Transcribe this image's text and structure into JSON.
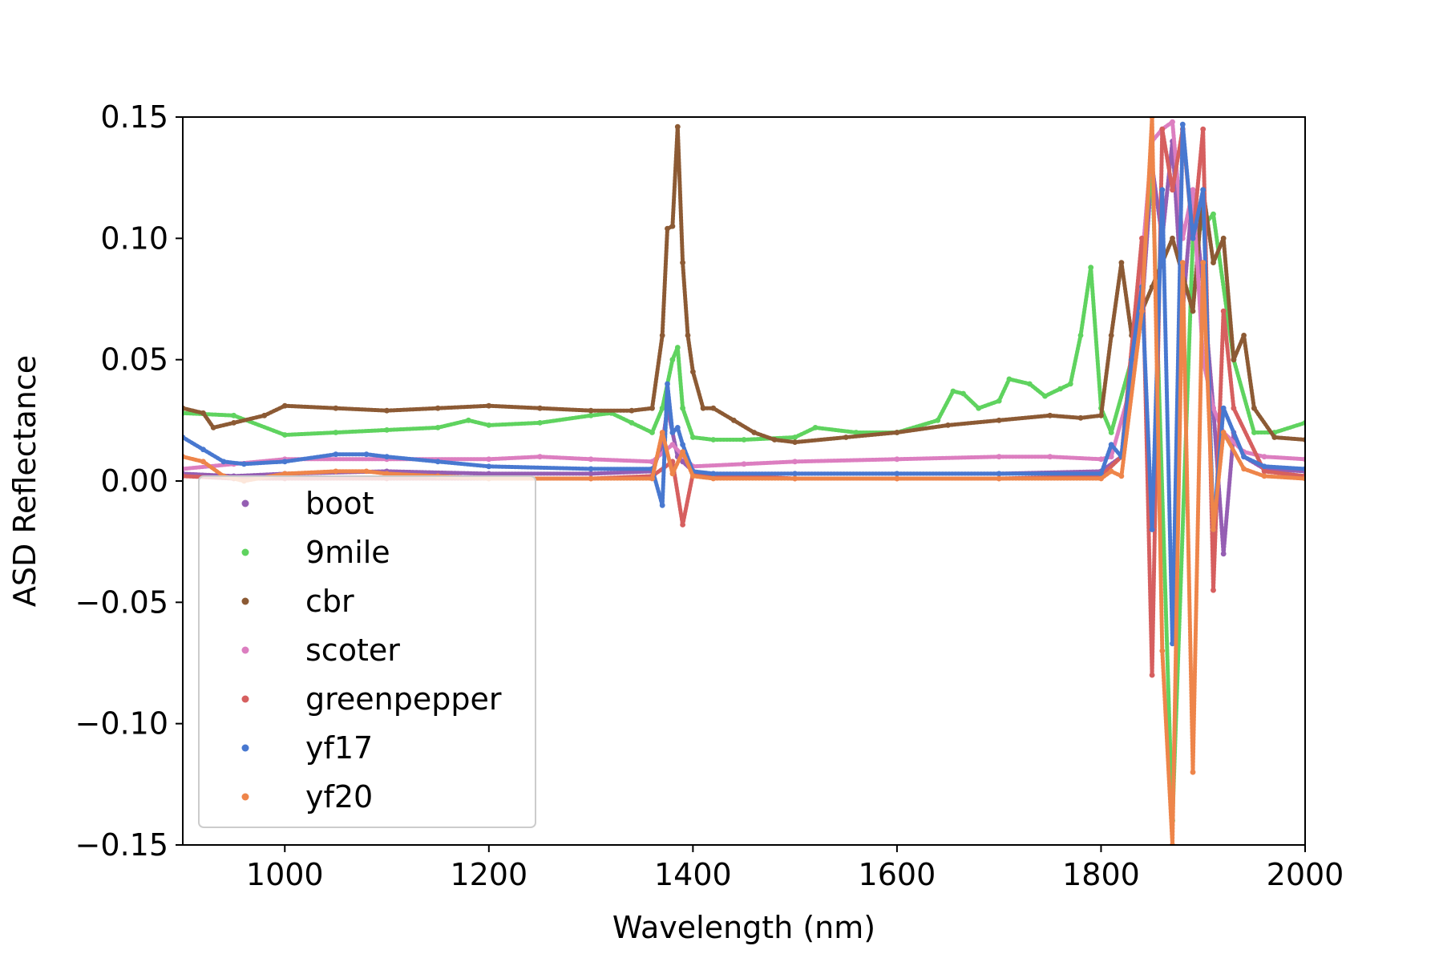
{
  "chart_data": {
    "type": "scatter",
    "title": "",
    "xlabel": "Wavelength (nm)",
    "ylabel": "ASD Reflectance",
    "xlim": [
      900,
      2000
    ],
    "ylim": [
      -0.15,
      0.15
    ],
    "x_ticks": [
      1000,
      1200,
      1400,
      1600,
      1800,
      2000
    ],
    "x_tick_labels": [
      "1000",
      "1200",
      "1400",
      "1600",
      "1800",
      "2000"
    ],
    "y_ticks": [
      0.15,
      0.1,
      0.05,
      0.0,
      -0.05,
      -0.1,
      -0.15
    ],
    "y_tick_labels": [
      "0.15",
      "0.10",
      "0.05",
      "0.00",
      "−0.05",
      "−0.10",
      "−0.15"
    ],
    "grid": false,
    "legend": {
      "placement": "lower-left",
      "entries": [
        "boot",
        "9mile",
        "cbr",
        "scoter",
        "greenpepper",
        "yf17",
        "yf20"
      ]
    },
    "series": [
      {
        "name": "boot",
        "color": "#955eb3",
        "x": [
          900,
          950,
          1000,
          1100,
          1200,
          1300,
          1360,
          1370,
          1375,
          1380,
          1385,
          1390,
          1400,
          1420,
          1500,
          1600,
          1700,
          1800,
          1820,
          1840,
          1850,
          1860,
          1870,
          1880,
          1890,
          1900,
          1910,
          1920,
          1930,
          1940,
          1960,
          2000
        ],
        "values": [
          0.003,
          0.002,
          0.003,
          0.004,
          0.003,
          0.003,
          0.004,
          0.015,
          0.03,
          0.02,
          0.01,
          0.008,
          0.004,
          0.003,
          0.003,
          0.003,
          0.003,
          0.004,
          0.01,
          0.07,
          0.13,
          0.1,
          0.14,
          0.07,
          0.12,
          0.08,
          0.03,
          -0.03,
          0.02,
          0.01,
          0.005,
          0.004
        ]
      },
      {
        "name": "9mile",
        "color": "#5fd35f",
        "x": [
          900,
          950,
          1000,
          1050,
          1100,
          1150,
          1180,
          1200,
          1250,
          1300,
          1320,
          1340,
          1360,
          1370,
          1380,
          1385,
          1390,
          1400,
          1420,
          1450,
          1500,
          1520,
          1560,
          1600,
          1640,
          1655,
          1665,
          1680,
          1700,
          1710,
          1730,
          1745,
          1760,
          1770,
          1780,
          1790,
          1800,
          1810,
          1830,
          1850,
          1870,
          1890,
          1910,
          1930,
          1950,
          1970,
          2000
        ],
        "values": [
          0.028,
          0.027,
          0.019,
          0.02,
          0.021,
          0.022,
          0.025,
          0.023,
          0.024,
          0.027,
          0.028,
          0.024,
          0.02,
          0.03,
          0.05,
          0.055,
          0.03,
          0.018,
          0.017,
          0.017,
          0.018,
          0.022,
          0.02,
          0.02,
          0.025,
          0.037,
          0.036,
          0.03,
          0.033,
          0.042,
          0.04,
          0.035,
          0.038,
          0.04,
          0.06,
          0.088,
          0.03,
          0.02,
          0.05,
          0.13,
          -0.14,
          0.1,
          0.11,
          0.05,
          0.02,
          0.02,
          0.024
        ]
      },
      {
        "name": "cbr",
        "color": "#8c5a34",
        "x": [
          900,
          920,
          930,
          950,
          980,
          1000,
          1050,
          1100,
          1150,
          1200,
          1250,
          1300,
          1340,
          1360,
          1370,
          1375,
          1380,
          1385,
          1390,
          1395,
          1400,
          1410,
          1420,
          1440,
          1460,
          1480,
          1500,
          1550,
          1600,
          1650,
          1700,
          1750,
          1780,
          1800,
          1810,
          1820,
          1830,
          1850,
          1870,
          1890,
          1900,
          1910,
          1920,
          1930,
          1940,
          1950,
          1970,
          2000
        ],
        "values": [
          0.03,
          0.028,
          0.022,
          0.024,
          0.027,
          0.031,
          0.03,
          0.029,
          0.03,
          0.031,
          0.03,
          0.029,
          0.029,
          0.03,
          0.06,
          0.104,
          0.105,
          0.146,
          0.09,
          0.06,
          0.045,
          0.03,
          0.03,
          0.025,
          0.02,
          0.017,
          0.016,
          0.018,
          0.02,
          0.023,
          0.025,
          0.027,
          0.026,
          0.027,
          0.06,
          0.09,
          0.06,
          0.08,
          0.1,
          0.07,
          0.12,
          0.09,
          0.1,
          0.05,
          0.06,
          0.03,
          0.018,
          0.017
        ]
      },
      {
        "name": "scoter",
        "color": "#dc7ec0",
        "x": [
          900,
          950,
          1000,
          1100,
          1200,
          1250,
          1300,
          1360,
          1380,
          1400,
          1450,
          1500,
          1600,
          1700,
          1750,
          1800,
          1810,
          1830,
          1840,
          1850,
          1860,
          1870,
          1880,
          1890,
          1900,
          1910,
          1920,
          1940,
          1960,
          2000
        ],
        "values": [
          0.005,
          0.007,
          0.009,
          0.009,
          0.009,
          0.01,
          0.009,
          0.008,
          0.015,
          0.006,
          0.007,
          0.008,
          0.009,
          0.01,
          0.01,
          0.009,
          0.01,
          0.04,
          0.09,
          0.14,
          0.145,
          0.148,
          0.1,
          0.12,
          0.05,
          0.03,
          0.02,
          0.012,
          0.01,
          0.009
        ]
      },
      {
        "name": "greenpepper",
        "color": "#d65f5f",
        "x": [
          900,
          950,
          1000,
          1100,
          1200,
          1300,
          1360,
          1380,
          1390,
          1400,
          1500,
          1600,
          1700,
          1800,
          1820,
          1840,
          1850,
          1860,
          1870,
          1880,
          1890,
          1900,
          1910,
          1920,
          1930,
          1960,
          2000
        ],
        "values": [
          0.002,
          0.001,
          0.001,
          0.001,
          0.001,
          0.001,
          0.002,
          0.008,
          -0.018,
          0.003,
          0.001,
          0.001,
          0.001,
          0.002,
          0.01,
          0.1,
          -0.08,
          0.145,
          0.12,
          0.145,
          0.1,
          0.145,
          -0.045,
          0.07,
          0.03,
          0.004,
          0.002
        ]
      },
      {
        "name": "yf17",
        "color": "#4878d0",
        "x": [
          900,
          920,
          940,
          960,
          1000,
          1050,
          1080,
          1100,
          1150,
          1200,
          1300,
          1360,
          1370,
          1375,
          1380,
          1385,
          1390,
          1400,
          1420,
          1500,
          1600,
          1700,
          1800,
          1810,
          1820,
          1830,
          1840,
          1850,
          1860,
          1870,
          1880,
          1890,
          1900,
          1910,
          1920,
          1940,
          1960,
          2000
        ],
        "values": [
          0.018,
          0.013,
          0.008,
          0.007,
          0.008,
          0.011,
          0.011,
          0.01,
          0.008,
          0.006,
          0.005,
          0.005,
          -0.01,
          0.04,
          0.02,
          0.022,
          0.015,
          0.004,
          0.003,
          0.003,
          0.003,
          0.003,
          0.003,
          0.015,
          0.01,
          0.05,
          0.08,
          -0.02,
          0.12,
          -0.067,
          0.147,
          0.1,
          0.12,
          -0.02,
          0.03,
          0.01,
          0.006,
          0.005
        ]
      },
      {
        "name": "yf20",
        "color": "#ee854a",
        "x": [
          900,
          920,
          940,
          960,
          1000,
          1050,
          1080,
          1100,
          1150,
          1200,
          1300,
          1360,
          1370,
          1380,
          1390,
          1400,
          1420,
          1500,
          1600,
          1700,
          1800,
          1810,
          1820,
          1840,
          1850,
          1860,
          1870,
          1880,
          1890,
          1900,
          1910,
          1920,
          1940,
          1960,
          2000
        ],
        "values": [
          0.01,
          0.008,
          0.002,
          0.0,
          0.003,
          0.004,
          0.004,
          0.003,
          0.002,
          0.001,
          0.001,
          0.001,
          0.02,
          0.003,
          0.012,
          0.002,
          0.001,
          0.001,
          0.001,
          0.001,
          0.001,
          0.004,
          0.002,
          0.07,
          0.15,
          -0.07,
          -0.15,
          0.09,
          -0.12,
          0.09,
          -0.02,
          0.02,
          0.005,
          0.002,
          0.001
        ]
      }
    ]
  }
}
